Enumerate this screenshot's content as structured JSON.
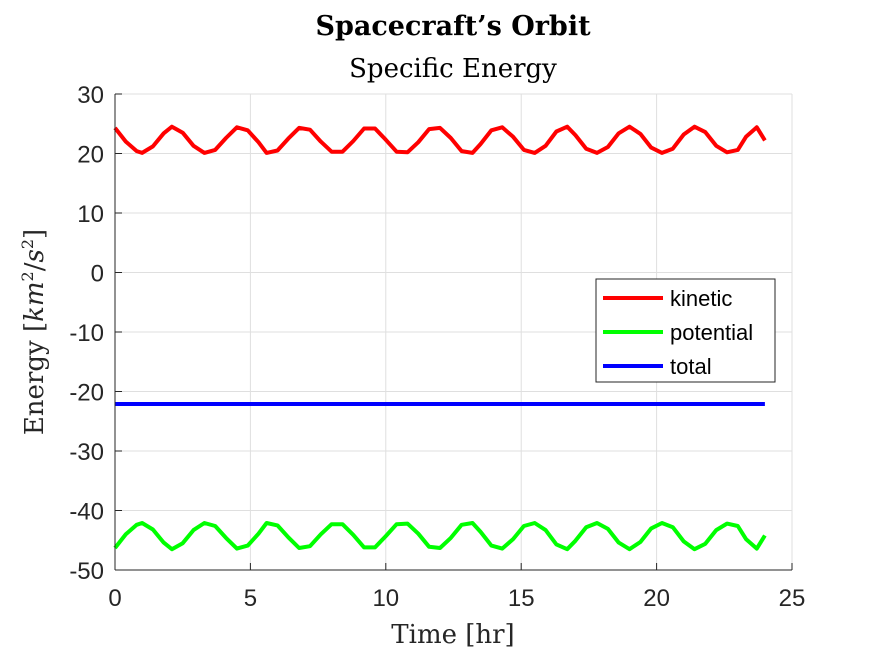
{
  "chart_data": {
    "type": "line",
    "title": "Spacecraft’s Orbit",
    "subtitle": "Specific Energy",
    "xlabel": "Time [hr]",
    "ylabel": "Energy [km²/s²]",
    "ylabel_parts": {
      "prefix": "Energy [",
      "km": "km",
      "exp": "2",
      "slash": "/",
      "s": "s",
      "exp2": "2",
      "suffix": "]"
    },
    "xlim": [
      0,
      25
    ],
    "ylim": [
      -50,
      30
    ],
    "xticks": [
      0,
      5,
      10,
      15,
      20,
      25
    ],
    "xtick_labels": [
      "0",
      "5",
      "10",
      "15",
      "20",
      "25"
    ],
    "yticks": [
      30,
      20,
      10,
      0,
      -10,
      -20,
      -30,
      -40,
      -50
    ],
    "ytick_labels": [
      "30",
      "20",
      "10",
      "0",
      "-10",
      "-20",
      "-30",
      "-40",
      "-50"
    ],
    "grid": true,
    "legend_position": "east",
    "series": [
      {
        "name": "kinetic",
        "color": "#ff0000",
        "x": [
          0.0,
          0.4,
          0.8,
          1.0,
          1.4,
          1.8,
          2.1,
          2.5,
          2.9,
          3.3,
          3.7,
          4.1,
          4.5,
          4.9,
          5.3,
          5.6,
          6.0,
          6.4,
          6.8,
          7.2,
          7.6,
          8.0,
          8.4,
          8.8,
          9.2,
          9.6,
          10.0,
          10.4,
          10.8,
          11.2,
          11.6,
          12.0,
          12.4,
          12.8,
          13.2,
          13.5,
          13.9,
          14.3,
          14.7,
          15.1,
          15.5,
          15.9,
          16.3,
          16.7,
          17.0,
          17.4,
          17.8,
          18.2,
          18.6,
          19.0,
          19.4,
          19.8,
          20.2,
          20.6,
          21.0,
          21.4,
          21.8,
          22.2,
          22.6,
          23.0,
          23.3,
          23.7,
          24.0
        ],
        "y": [
          24.3,
          22.0,
          20.4,
          20.1,
          21.2,
          23.4,
          24.5,
          23.5,
          21.3,
          20.1,
          20.6,
          22.6,
          24.4,
          23.9,
          21.9,
          20.1,
          20.5,
          22.5,
          24.3,
          24.0,
          22.0,
          20.3,
          20.3,
          22.1,
          24.2,
          24.2,
          22.3,
          20.3,
          20.2,
          21.9,
          24.1,
          24.3,
          22.6,
          20.4,
          20.1,
          21.6,
          23.9,
          24.4,
          22.8,
          20.6,
          20.1,
          21.3,
          23.7,
          24.5,
          23.1,
          20.8,
          20.1,
          21.1,
          23.4,
          24.5,
          23.3,
          21.0,
          20.1,
          20.8,
          23.2,
          24.5,
          23.6,
          21.3,
          20.2,
          20.6,
          22.8,
          24.4,
          22.2
        ]
      },
      {
        "name": "potential",
        "color": "#00ff00",
        "x": [
          0.0,
          0.4,
          0.8,
          1.0,
          1.4,
          1.8,
          2.1,
          2.5,
          2.9,
          3.3,
          3.7,
          4.1,
          4.5,
          4.9,
          5.3,
          5.6,
          6.0,
          6.4,
          6.8,
          7.2,
          7.6,
          8.0,
          8.4,
          8.8,
          9.2,
          9.6,
          10.0,
          10.4,
          10.8,
          11.2,
          11.6,
          12.0,
          12.4,
          12.8,
          13.2,
          13.5,
          13.9,
          14.3,
          14.7,
          15.1,
          15.5,
          15.9,
          16.3,
          16.7,
          17.0,
          17.4,
          17.8,
          18.2,
          18.6,
          19.0,
          19.4,
          19.8,
          20.2,
          20.6,
          21.0,
          21.4,
          21.8,
          22.2,
          22.6,
          23.0,
          23.3,
          23.7,
          24.0
        ],
        "y": [
          -46.3,
          -44.0,
          -42.4,
          -42.1,
          -43.2,
          -45.4,
          -46.5,
          -45.5,
          -43.3,
          -42.1,
          -42.6,
          -44.6,
          -46.4,
          -45.9,
          -43.9,
          -42.1,
          -42.5,
          -44.5,
          -46.3,
          -46.0,
          -44.0,
          -42.3,
          -42.3,
          -44.1,
          -46.2,
          -46.2,
          -44.3,
          -42.3,
          -42.2,
          -43.9,
          -46.1,
          -46.3,
          -44.6,
          -42.4,
          -42.1,
          -43.6,
          -45.9,
          -46.4,
          -44.8,
          -42.6,
          -42.1,
          -43.3,
          -45.7,
          -46.5,
          -45.1,
          -42.8,
          -42.1,
          -43.1,
          -45.4,
          -46.5,
          -45.3,
          -43.0,
          -42.1,
          -42.8,
          -45.2,
          -46.5,
          -45.6,
          -43.3,
          -42.2,
          -42.6,
          -44.8,
          -46.4,
          -44.2
        ]
      },
      {
        "name": "total",
        "color": "#0000ff",
        "x": [
          0,
          24
        ],
        "y": [
          -22.1,
          -22.1
        ]
      }
    ]
  }
}
